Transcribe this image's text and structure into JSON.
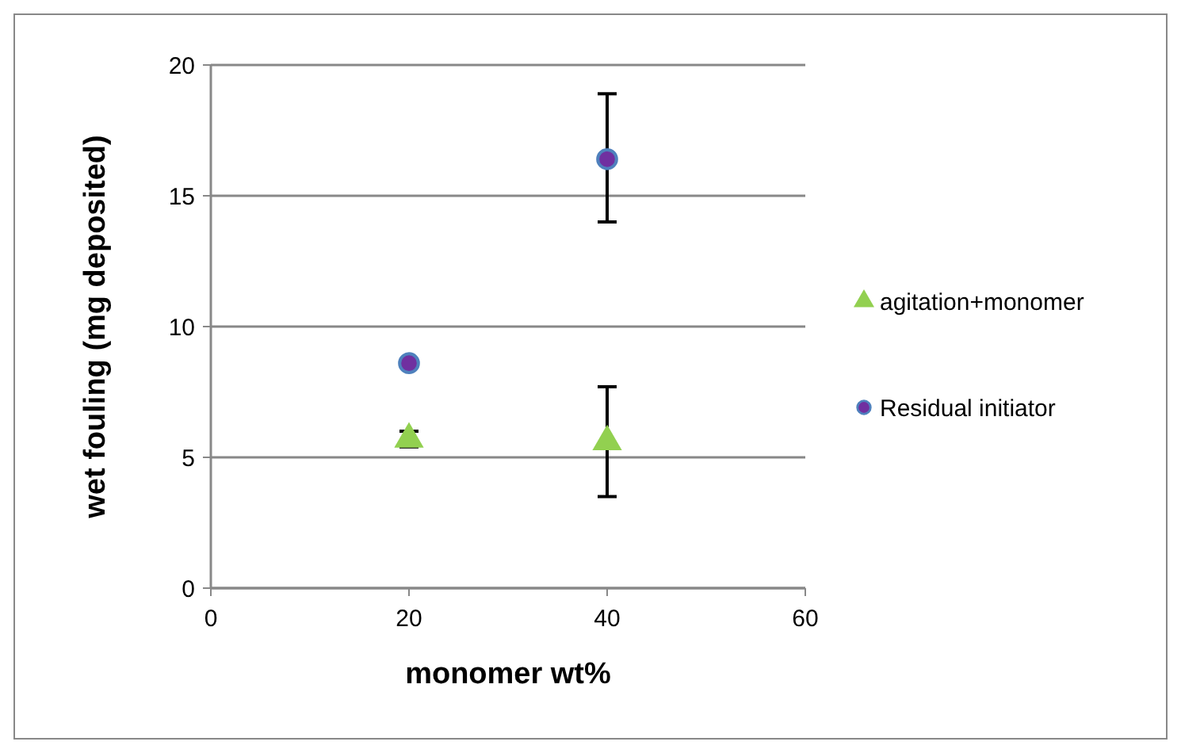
{
  "chart_data": {
    "type": "scatter",
    "xlabel": "monomer wt%",
    "ylabel": "wet fouling (mg deposited)",
    "xlim": [
      0,
      60
    ],
    "xticks": [
      0,
      20,
      40,
      60
    ],
    "ylim": [
      0,
      20
    ],
    "yticks": [
      0,
      5,
      10,
      15,
      20
    ],
    "grid": "y",
    "legend": "right",
    "x": [
      20,
      40
    ],
    "series": [
      {
        "name": "agitation+monomer",
        "color": "#92d050",
        "marker": "triangle",
        "values": [
          5.7,
          5.6
        ],
        "errors": [
          0.3,
          2.1
        ]
      },
      {
        "name": "Residual initiator",
        "color": "#7030a0",
        "marker": "circle",
        "values": [
          8.6,
          16.4
        ],
        "errors": [
          null,
          [
            14.0,
            18.9
          ]
        ]
      }
    ]
  }
}
